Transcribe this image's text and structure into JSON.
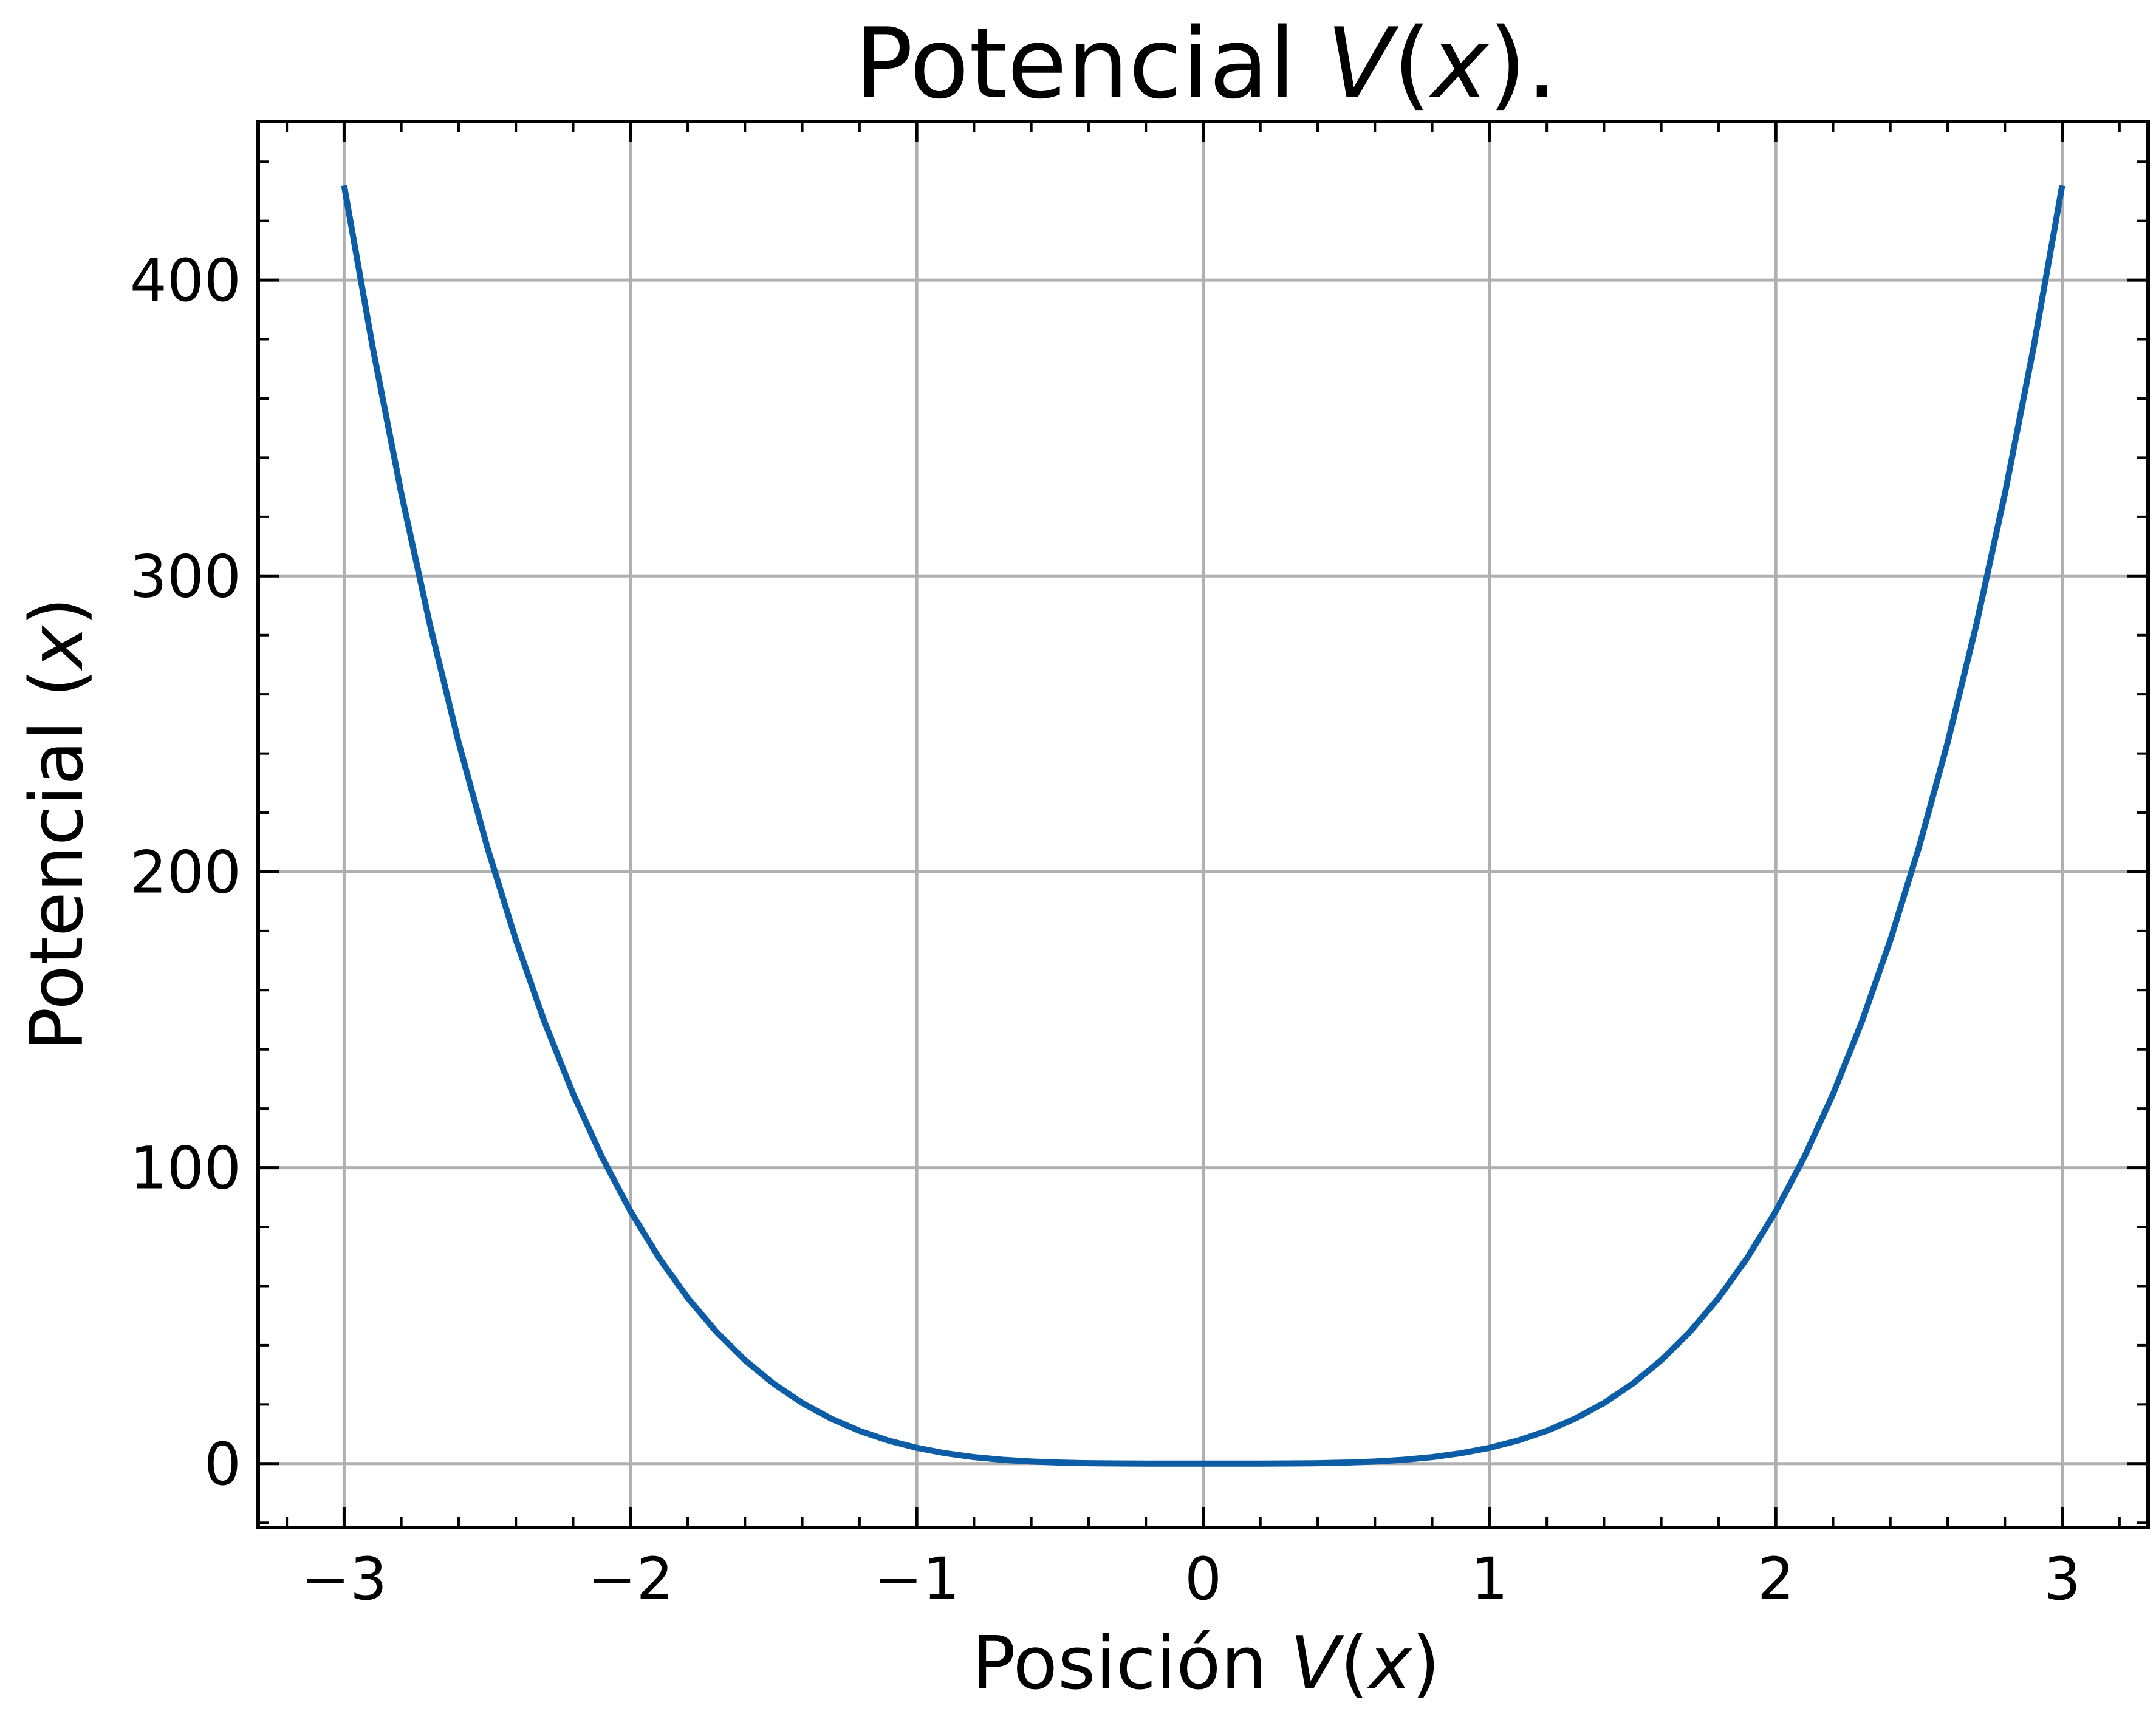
{
  "chart_data": {
    "type": "line",
    "title": {
      "text": "Potencial ",
      "italic": "V",
      "rest": "(",
      "italic2": "x",
      "end": ")."
    },
    "xlabel": {
      "text": "Posición ",
      "italic": "V",
      "rest": "(",
      "italic2": "x",
      "end": ")"
    },
    "ylabel": {
      "text": "Potencial (",
      "italic": "x",
      "end": ")"
    },
    "xlim": [
      -3.3,
      3.3
    ],
    "ylim": [
      -21.6,
      453.6
    ],
    "x_ticks": [
      -3,
      -2,
      -1,
      0,
      1,
      2,
      3
    ],
    "x_tick_labels": [
      "−3",
      "−2",
      "−1",
      "0",
      "1",
      "2",
      "3"
    ],
    "y_ticks": [
      0,
      100,
      200,
      300,
      400
    ],
    "y_tick_labels": [
      "0",
      "100",
      "200",
      "300",
      "400"
    ],
    "grid": true,
    "series": [
      {
        "color": "#0c5da5",
        "function": "V(x) = 16 x^4 / 3",
        "x_range": [
          -3,
          3
        ],
        "points": 61,
        "y_max": 432
      }
    ]
  }
}
